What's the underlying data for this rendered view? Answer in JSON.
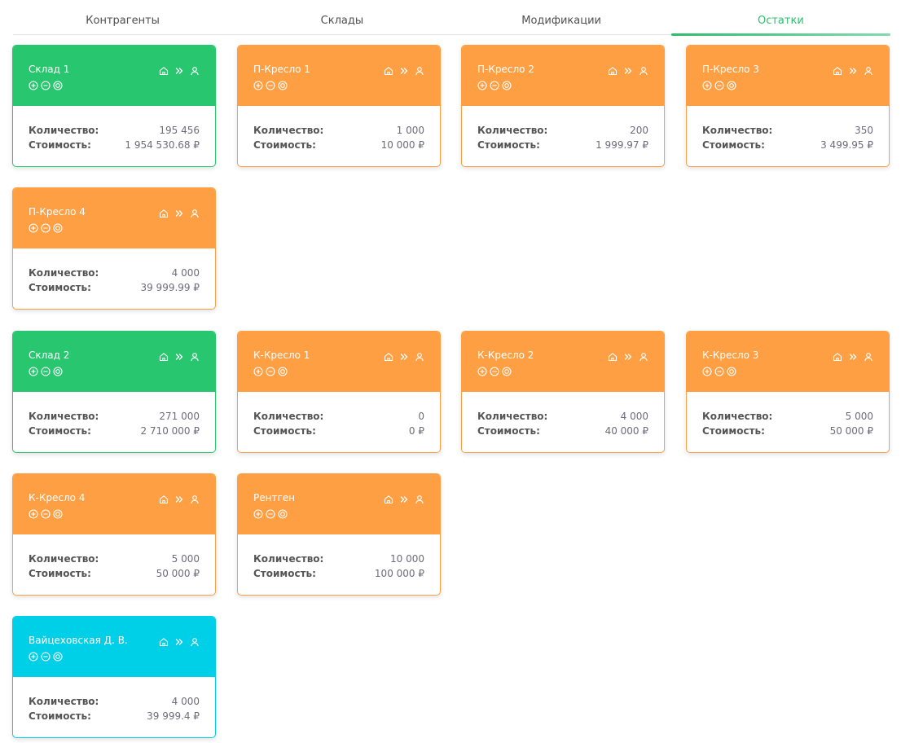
{
  "tabs": [
    {
      "label": "Контрагенты"
    },
    {
      "label": "Склады"
    },
    {
      "label": "Модификации"
    },
    {
      "label": "Остатки"
    }
  ],
  "labels": {
    "quantity": "Количество:",
    "cost": "Стоимость:"
  },
  "colors": {
    "green": "#28c76f",
    "orange": "#ff9f43",
    "cyan": "#00cfe8",
    "accent": "#2dbd6e"
  },
  "icons": {
    "header": [
      "home-icon",
      "double-chevron-right-icon",
      "user-icon"
    ],
    "actions": [
      "plus-circle-icon",
      "minus-circle-icon",
      "target-circle-icon"
    ]
  },
  "cards": [
    {
      "title": "Склад 1",
      "color": "green",
      "quantity": "195 456",
      "cost": "1 954 530.68 ₽"
    },
    {
      "title": "П-Кресло 1",
      "color": "orange",
      "quantity": "1 000",
      "cost": "10 000 ₽"
    },
    {
      "title": "П-Кресло 2",
      "color": "orange",
      "quantity": "200",
      "cost": "1 999.97 ₽"
    },
    {
      "title": "П-Кресло 3",
      "color": "orange",
      "quantity": "350",
      "cost": "3 499.95 ₽"
    },
    {
      "title": "П-Кресло 4",
      "color": "orange",
      "quantity": "4 000",
      "cost": "39 999.99 ₽"
    },
    {
      "title": "Склад 2",
      "color": "green",
      "quantity": "271 000",
      "cost": "2 710 000 ₽"
    },
    {
      "title": "К-Кресло 1",
      "color": "orange",
      "quantity": "0",
      "cost": "0 ₽"
    },
    {
      "title": "К-Кресло 2",
      "color": "orange",
      "quantity": "4 000",
      "cost": "40 000 ₽"
    },
    {
      "title": "К-Кресло 3",
      "color": "orange",
      "quantity": "5 000",
      "cost": "50 000 ₽"
    },
    {
      "title": "К-Кресло 4",
      "color": "orange",
      "quantity": "5 000",
      "cost": "50 000 ₽"
    },
    {
      "title": "Рентген",
      "color": "orange",
      "quantity": "10 000",
      "cost": "100 000 ₽"
    },
    {
      "title": "Вайцеховская Д. В.",
      "color": "cyan",
      "quantity": "4 000",
      "cost": "39 999.4 ₽"
    }
  ]
}
